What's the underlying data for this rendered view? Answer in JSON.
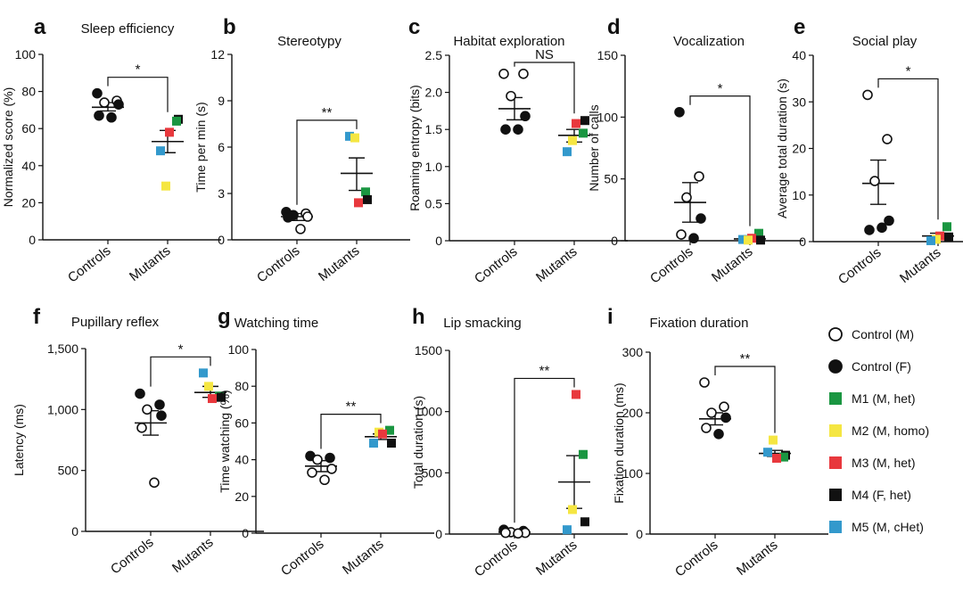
{
  "colors": {
    "M1": "#1a9641",
    "M2": "#f5e642",
    "M3": "#e8383d",
    "M4": "#111111",
    "M5": "#3399cc",
    "axis": "#111111"
  },
  "legend": [
    {
      "key": "CM",
      "label": "Control (M)",
      "marker": "open-circle",
      "color": "#111111"
    },
    {
      "key": "CF",
      "label": "Control (F)",
      "marker": "filled-circle",
      "color": "#111111"
    },
    {
      "key": "M1",
      "label": "M1 (M, het)",
      "marker": "square",
      "color": "#1a9641"
    },
    {
      "key": "M2",
      "label": "M2 (M, homo)",
      "marker": "square",
      "color": "#f5e642"
    },
    {
      "key": "M3",
      "label": "M3 (M, het)",
      "marker": "square",
      "color": "#e8383d"
    },
    {
      "key": "M4",
      "label": "M4 (F, het)",
      "marker": "square",
      "color": "#111111"
    },
    {
      "key": "M5",
      "label": "M5 (M, cHet)",
      "marker": "square",
      "color": "#3399cc"
    }
  ],
  "chart_data": [
    {
      "panel": "a",
      "type": "scatter",
      "title": "Sleep efficiency",
      "ylabel": "Normalized score (%)",
      "categories": [
        "Controls",
        "Mutants"
      ],
      "ylim": [
        0,
        100
      ],
      "yticks": [
        "0",
        "20",
        "40",
        "60",
        "80",
        "100"
      ],
      "significance": "*",
      "controls": {
        "points": [
          {
            "y": 79,
            "s": "F"
          },
          {
            "y": 75,
            "s": "M"
          },
          {
            "y": 74,
            "s": "M"
          },
          {
            "y": 73,
            "s": "F"
          },
          {
            "y": 67,
            "s": "F"
          },
          {
            "y": 66,
            "s": "F"
          }
        ],
        "mean": 71.5,
        "sem_low": 69.5,
        "sem_high": 74
      },
      "mutants": {
        "points": [
          {
            "y": 65,
            "k": "M4"
          },
          {
            "y": 64,
            "k": "M1"
          },
          {
            "y": 58,
            "k": "M3"
          },
          {
            "y": 48,
            "k": "M5"
          },
          {
            "y": 29,
            "k": "M2"
          }
        ],
        "mean": 53,
        "sem_low": 47,
        "sem_high": 59
      }
    },
    {
      "panel": "b",
      "type": "scatter",
      "title": "Stereotypy",
      "ylabel": "Time per min (s)",
      "categories": [
        "Controls",
        "Mutants"
      ],
      "ylim": [
        0,
        12
      ],
      "yticks": [
        "0",
        "3",
        "6",
        "9",
        "12"
      ],
      "significance": "**",
      "controls": {
        "points": [
          {
            "y": 1.8,
            "s": "F"
          },
          {
            "y": 1.7,
            "s": "M"
          },
          {
            "y": 1.6,
            "s": "F"
          },
          {
            "y": 1.5,
            "s": "M"
          },
          {
            "y": 1.45,
            "s": "F"
          },
          {
            "y": 0.7,
            "s": "M"
          }
        ],
        "mean": 1.5,
        "sem_low": 1.25,
        "sem_high": 1.7
      },
      "mutants": {
        "points": [
          {
            "y": 6.7,
            "k": "M5"
          },
          {
            "y": 6.6,
            "k": "M2"
          },
          {
            "y": 3.1,
            "k": "M1"
          },
          {
            "y": 2.6,
            "k": "M4"
          },
          {
            "y": 2.4,
            "k": "M3"
          }
        ],
        "mean": 4.3,
        "sem_low": 3.2,
        "sem_high": 5.3
      }
    },
    {
      "panel": "c",
      "type": "scatter",
      "title": "Habitat exploration",
      "ylabel": "Roaming entropy (bits)",
      "categories": [
        "Controls",
        "Mutants"
      ],
      "ylim": [
        0,
        2.5
      ],
      "yticks": [
        "0",
        "0.5",
        "1.0",
        "1.5",
        "2.0",
        "2.5"
      ],
      "significance": "NS",
      "controls": {
        "points": [
          {
            "y": 2.25,
            "s": "M"
          },
          {
            "y": 2.25,
            "s": "M"
          },
          {
            "y": 1.95,
            "s": "M"
          },
          {
            "y": 1.68,
            "s": "F"
          },
          {
            "y": 1.5,
            "s": "F"
          },
          {
            "y": 1.5,
            "s": "F"
          }
        ],
        "mean": 1.78,
        "sem_low": 1.63,
        "sem_high": 1.93
      },
      "mutants": {
        "points": [
          {
            "y": 1.62,
            "k": "M4"
          },
          {
            "y": 1.58,
            "k": "M3"
          },
          {
            "y": 1.45,
            "k": "M1"
          },
          {
            "y": 1.35,
            "k": "M2"
          },
          {
            "y": 1.2,
            "k": "M5"
          }
        ],
        "mean": 1.42,
        "sem_low": 1.33,
        "sem_high": 1.5
      }
    },
    {
      "panel": "d",
      "type": "scatter",
      "title": "Vocalization",
      "ylabel": "Number of calls",
      "categories": [
        "Controls",
        "Mutants"
      ],
      "ylim": [
        0,
        150
      ],
      "yticks": [
        "0",
        "50",
        "100",
        "150"
      ],
      "significance": "*",
      "controls": {
        "points": [
          {
            "y": 104,
            "s": "F"
          },
          {
            "y": 52,
            "s": "M"
          },
          {
            "y": 35,
            "s": "M"
          },
          {
            "y": 18,
            "s": "F"
          },
          {
            "y": 5,
            "s": "M"
          },
          {
            "y": 2,
            "s": "F"
          }
        ],
        "mean": 31,
        "sem_low": 15,
        "sem_high": 47
      },
      "mutants": {
        "points": [
          {
            "y": 6,
            "k": "M1"
          },
          {
            "y": 2,
            "k": "M3"
          },
          {
            "y": 1,
            "k": "M5"
          },
          {
            "y": 0.5,
            "k": "M4"
          },
          {
            "y": 0.5,
            "k": "M2"
          }
        ],
        "mean": 1.5,
        "sem_low": 0.5,
        "sem_high": 2.5
      }
    },
    {
      "panel": "e",
      "type": "scatter",
      "title": "Social play",
      "ylabel": "Average total duration (s)",
      "categories": [
        "Controls",
        "Mutants"
      ],
      "ylim": [
        0,
        40
      ],
      "yticks": [
        "0",
        "10",
        "20",
        "30",
        "40"
      ],
      "significance": "*",
      "controls": {
        "points": [
          {
            "y": 31.5,
            "s": "M"
          },
          {
            "y": 22,
            "s": "M"
          },
          {
            "y": 13,
            "s": "M"
          },
          {
            "y": 4.5,
            "s": "F"
          },
          {
            "y": 2.5,
            "s": "F"
          },
          {
            "y": 3,
            "s": "F"
          }
        ],
        "mean": 12.5,
        "sem_low": 8,
        "sem_high": 17.5
      },
      "mutants": {
        "points": [
          {
            "y": 3.2,
            "k": "M1"
          },
          {
            "y": 1.2,
            "k": "M3"
          },
          {
            "y": 1,
            "k": "M4"
          },
          {
            "y": 0.5,
            "k": "M2"
          },
          {
            "y": 0.2,
            "k": "M5"
          }
        ],
        "mean": 1.2,
        "sem_low": 0.5,
        "sem_high": 1.8
      }
    },
    {
      "panel": "f",
      "type": "scatter",
      "title": "Pupillary reflex",
      "ylabel": "Latency (ms)",
      "categories": [
        "Controls",
        "Mutants"
      ],
      "ylim": [
        0,
        1500
      ],
      "yticks": [
        "0",
        "500",
        "1,000",
        "1,500"
      ],
      "significance": "*",
      "controls": {
        "points": [
          {
            "y": 1130,
            "s": "F"
          },
          {
            "y": 1040,
            "s": "F"
          },
          {
            "y": 1000,
            "s": "M"
          },
          {
            "y": 950,
            "s": "F"
          },
          {
            "y": 850,
            "s": "M"
          },
          {
            "y": 400,
            "s": "M"
          }
        ],
        "mean": 890,
        "sem_low": 790,
        "sem_high": 990
      },
      "mutants": {
        "points": [
          {
            "y": 1300,
            "k": "M5"
          },
          {
            "y": 1190,
            "k": "M2"
          },
          {
            "y": 1110,
            "k": "M1"
          },
          {
            "y": 1090,
            "k": "M3"
          },
          {
            "y": 1100,
            "k": "M4"
          }
        ],
        "mean": 1140,
        "sem_low": 1100,
        "sem_high": 1190
      }
    },
    {
      "panel": "g",
      "type": "scatter",
      "title": "Watching time",
      "ylabel": "Time watching (%)",
      "categories": [
        "Controls",
        "Mutants"
      ],
      "ylim": [
        0,
        100
      ],
      "yticks": [
        "0",
        "20",
        "40",
        "60",
        "80",
        "100"
      ],
      "significance": "**",
      "controls": {
        "points": [
          {
            "y": 42,
            "s": "F"
          },
          {
            "y": 41,
            "s": "F"
          },
          {
            "y": 40,
            "s": "M"
          },
          {
            "y": 35,
            "s": "M"
          },
          {
            "y": 33,
            "s": "M"
          },
          {
            "y": 29,
            "s": "M"
          }
        ],
        "mean": 36.5,
        "sem_low": 33.5,
        "sem_high": 39.5
      },
      "mutants": {
        "points": [
          {
            "y": 56,
            "k": "M1"
          },
          {
            "y": 55,
            "k": "M2"
          },
          {
            "y": 54,
            "k": "M3"
          },
          {
            "y": 49,
            "k": "M4"
          },
          {
            "y": 49,
            "k": "M5"
          }
        ],
        "mean": 52.5,
        "sem_low": 51,
        "sem_high": 54
      }
    },
    {
      "panel": "h",
      "type": "scatter",
      "title": "Lip smacking",
      "ylabel": "Total duration (s)",
      "categories": [
        "Controls",
        "Mutants"
      ],
      "ylim": [
        0,
        1500
      ],
      "yticks": [
        "0",
        "500",
        "1000",
        "1500"
      ],
      "significance": "**",
      "controls": {
        "points": [
          {
            "y": 35,
            "s": "F"
          },
          {
            "y": 25,
            "s": "F"
          },
          {
            "y": 15,
            "s": "M"
          },
          {
            "y": 10,
            "s": "M"
          },
          {
            "y": 10,
            "s": "M"
          },
          {
            "y": 5,
            "s": "M"
          }
        ],
        "mean": 15,
        "sem_low": 8,
        "sem_high": 22
      },
      "mutants": {
        "points": [
          {
            "y": 1140,
            "k": "M3"
          },
          {
            "y": 650,
            "k": "M1"
          },
          {
            "y": 200,
            "k": "M2"
          },
          {
            "y": 100,
            "k": "M4"
          },
          {
            "y": 35,
            "k": "M5"
          }
        ],
        "mean": 425,
        "sem_low": 210,
        "sem_high": 640
      }
    },
    {
      "panel": "i",
      "type": "scatter",
      "title": "Fixation duration",
      "ylabel": "Fixation duration (ms)",
      "categories": [
        "Controls",
        "Mutants"
      ],
      "ylim": [
        0,
        300
      ],
      "yticks": [
        "0",
        "100",
        "200",
        "300"
      ],
      "significance": "**",
      "controls": {
        "points": [
          {
            "y": 250,
            "s": "M"
          },
          {
            "y": 210,
            "s": "M"
          },
          {
            "y": 200,
            "s": "M"
          },
          {
            "y": 192,
            "s": "F"
          },
          {
            "y": 175,
            "s": "M"
          },
          {
            "y": 165,
            "s": "F"
          }
        ],
        "mean": 190,
        "sem_low": 180,
        "sem_high": 200
      },
      "mutants": {
        "points": [
          {
            "y": 155,
            "k": "M2"
          },
          {
            "y": 135,
            "k": "M5"
          },
          {
            "y": 130,
            "k": "M4"
          },
          {
            "y": 127,
            "k": "M1"
          },
          {
            "y": 125,
            "k": "M3"
          }
        ],
        "mean": 133,
        "sem_low": 128,
        "sem_high": 138
      }
    }
  ]
}
